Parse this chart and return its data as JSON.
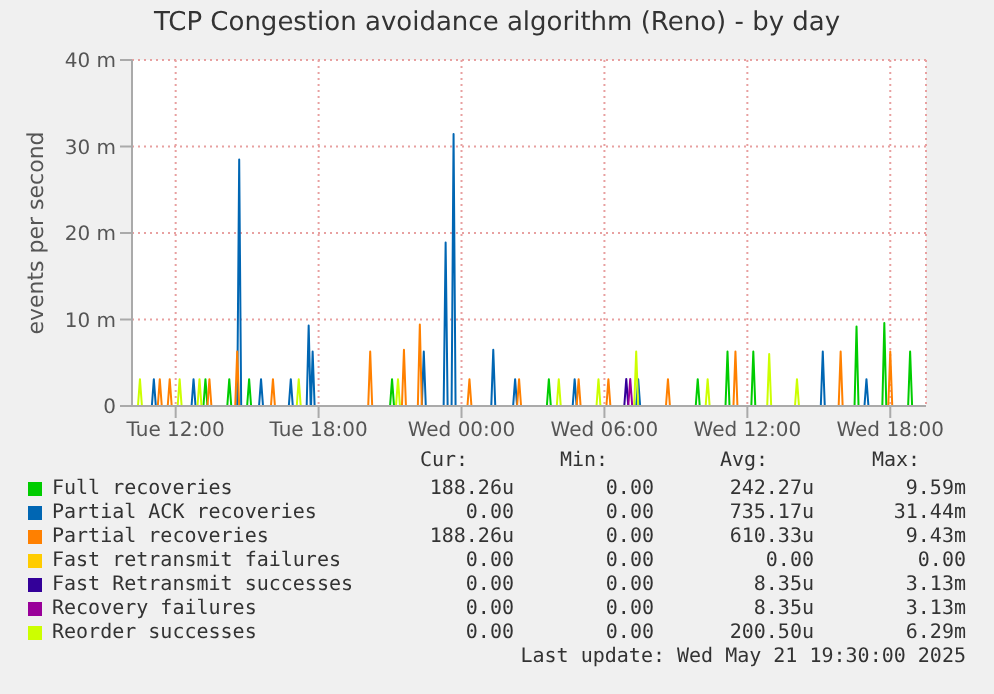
{
  "chart_data": {
    "type": "line",
    "title": "TCP Congestion avoidance algorithm (Reno) - by day",
    "ylabel": "events per second",
    "xlim": [
      "2025-05-20T10:10",
      "2025-05-21T19:30"
    ],
    "ylim": [
      0,
      40
    ],
    "xticks": [
      {
        "value": "2025-05-20T12:00",
        "label": "Tue 12:00"
      },
      {
        "value": "2025-05-20T18:00",
        "label": "Tue 18:00"
      },
      {
        "value": "2025-05-21T00:00",
        "label": "Wed 00:00"
      },
      {
        "value": "2025-05-21T06:00",
        "label": "Wed 06:00"
      },
      {
        "value": "2025-05-21T12:00",
        "label": "Wed 12:00"
      },
      {
        "value": "2025-05-21T18:00",
        "label": "Wed 18:00"
      }
    ],
    "yticks": [
      {
        "value": 0,
        "label": "0"
      },
      {
        "value": 10,
        "label": "10 m"
      },
      {
        "value": 20,
        "label": "20 m"
      },
      {
        "value": 30,
        "label": "30 m"
      },
      {
        "value": 40,
        "label": "40 m"
      }
    ],
    "grid": true,
    "legend": "bottom",
    "marker": "none",
    "series": [
      {
        "name": "Full recoveries",
        "color": "#00cc00",
        "x": [
          "2025-05-20T13:10",
          "2025-05-20T13:15",
          "2025-05-20T13:20",
          "2025-05-20T14:10",
          "2025-05-20T14:15",
          "2025-05-20T14:20",
          "2025-05-20T15:00",
          "2025-05-20T15:05",
          "2025-05-20T15:10",
          "2025-05-20T21:00",
          "2025-05-20T21:05",
          "2025-05-20T21:10",
          "2025-05-21T03:35",
          "2025-05-21T03:40",
          "2025-05-21T03:45",
          "2025-05-21T09:50",
          "2025-05-21T09:55",
          "2025-05-21T10:00",
          "2025-05-21T11:05",
          "2025-05-21T11:10",
          "2025-05-21T11:15",
          "2025-05-21T12:10",
          "2025-05-21T12:15",
          "2025-05-21T12:20",
          "2025-05-21T16:30",
          "2025-05-21T16:35",
          "2025-05-21T16:40",
          "2025-05-21T17:40",
          "2025-05-21T17:45",
          "2025-05-21T17:50",
          "2025-05-21T18:45",
          "2025-05-21T18:50",
          "2025-05-21T18:55"
        ],
        "values": [
          0,
          3.1,
          0,
          0,
          3.1,
          0,
          0,
          3.1,
          0,
          0,
          3.1,
          0,
          0,
          3.1,
          0,
          0,
          3.1,
          0,
          0,
          6.3,
          0,
          0,
          6.3,
          0,
          0,
          9.2,
          0,
          0,
          9.59,
          0,
          0,
          6.3,
          0
        ]
      },
      {
        "name": "Partial ACK recoveries",
        "color": "#0066b3",
        "x": [
          "2025-05-20T11:00",
          "2025-05-20T11:05",
          "2025-05-20T11:10",
          "2025-05-20T12:40",
          "2025-05-20T12:45",
          "2025-05-20T12:50",
          "2025-05-20T14:35",
          "2025-05-20T14:40",
          "2025-05-20T14:45",
          "2025-05-20T15:30",
          "2025-05-20T15:35",
          "2025-05-20T15:40",
          "2025-05-20T16:45",
          "2025-05-20T16:50",
          "2025-05-20T16:55",
          "2025-05-20T17:30",
          "2025-05-20T17:35",
          "2025-05-20T17:40",
          "2025-05-20T17:41",
          "2025-05-20T17:45",
          "2025-05-20T17:50",
          "2025-05-20T22:20",
          "2025-05-20T22:25",
          "2025-05-20T22:30",
          "2025-05-20T23:15",
          "2025-05-20T23:20",
          "2025-05-20T23:25",
          "2025-05-20T23:35",
          "2025-05-20T23:40",
          "2025-05-20T23:45",
          "2025-05-21T01:15",
          "2025-05-21T01:20",
          "2025-05-21T01:25",
          "2025-05-21T02:10",
          "2025-05-21T02:15",
          "2025-05-21T02:20",
          "2025-05-21T04:40",
          "2025-05-21T04:45",
          "2025-05-21T04:50",
          "2025-05-21T07:20",
          "2025-05-21T07:25",
          "2025-05-21T07:30",
          "2025-05-21T15:05",
          "2025-05-21T15:10",
          "2025-05-21T15:15",
          "2025-05-21T16:55",
          "2025-05-21T17:00",
          "2025-05-21T17:05"
        ],
        "values": [
          0,
          3.1,
          0,
          0,
          3.1,
          0,
          0,
          28.5,
          0,
          0,
          3.1,
          0,
          0,
          3.1,
          0,
          0,
          9.3,
          0,
          0,
          6.3,
          0,
          0,
          6.3,
          0,
          0,
          18.9,
          0,
          0,
          31.44,
          0,
          0,
          6.5,
          0,
          0,
          3.1,
          0,
          0,
          3.1,
          0,
          0,
          3.1,
          0,
          0,
          6.3,
          0,
          0,
          3.1,
          0
        ]
      },
      {
        "name": "Partial recoveries",
        "color": "#ff8000",
        "x": [
          "2025-05-20T11:15",
          "2025-05-20T11:20",
          "2025-05-20T11:25",
          "2025-05-20T11:40",
          "2025-05-20T11:45",
          "2025-05-20T11:50",
          "2025-05-20T13:20",
          "2025-05-20T13:25",
          "2025-05-20T13:30",
          "2025-05-20T14:30",
          "2025-05-20T14:35",
          "2025-05-20T14:40",
          "2025-05-20T16:00",
          "2025-05-20T16:05",
          "2025-05-20T16:10",
          "2025-05-20T20:05",
          "2025-05-20T20:10",
          "2025-05-20T20:15",
          "2025-05-20T21:30",
          "2025-05-20T21:35",
          "2025-05-20T21:40",
          "2025-05-20T22:10",
          "2025-05-20T22:15",
          "2025-05-20T22:20",
          "2025-05-21T00:15",
          "2025-05-21T00:20",
          "2025-05-21T00:25",
          "2025-05-21T02:20",
          "2025-05-21T02:25",
          "2025-05-21T02:30",
          "2025-05-21T04:50",
          "2025-05-21T04:55",
          "2025-05-21T05:00",
          "2025-05-21T06:05",
          "2025-05-21T06:10",
          "2025-05-21T06:15",
          "2025-05-21T08:35",
          "2025-05-21T08:40",
          "2025-05-21T08:45",
          "2025-05-21T11:25",
          "2025-05-21T11:30",
          "2025-05-21T11:35",
          "2025-05-21T15:50",
          "2025-05-21T15:55",
          "2025-05-21T16:00",
          "2025-05-21T17:55",
          "2025-05-21T18:00",
          "2025-05-21T18:05"
        ],
        "values": [
          0,
          3.1,
          0,
          0,
          3.1,
          0,
          0,
          3.1,
          0,
          0,
          6.3,
          0,
          0,
          3.1,
          0,
          0,
          6.3,
          0,
          0,
          6.5,
          0,
          0,
          9.43,
          0,
          0,
          3.1,
          0,
          0,
          3.1,
          0,
          0,
          3.1,
          0,
          0,
          3.1,
          0,
          0,
          3.1,
          0,
          0,
          6.3,
          0,
          0,
          6.3,
          0,
          0,
          6.3,
          0
        ]
      },
      {
        "name": "Fast retransmit failures",
        "color": "#ffcc00"
      },
      {
        "name": "Fast Retransmit successes",
        "color": "#330099",
        "x": [
          "2025-05-21T06:50",
          "2025-05-21T06:55",
          "2025-05-21T07:00"
        ],
        "values": [
          0,
          3.13,
          0
        ]
      },
      {
        "name": "Recovery failures",
        "color": "#990099",
        "x": [
          "2025-05-21T07:00",
          "2025-05-21T07:05",
          "2025-05-21T07:10"
        ],
        "values": [
          0,
          3.13,
          0
        ]
      },
      {
        "name": "Reorder successes",
        "color": "#ccff00",
        "x": [
          "2025-05-20T10:25",
          "2025-05-20T10:30",
          "2025-05-20T10:35",
          "2025-05-20T12:05",
          "2025-05-20T12:10",
          "2025-05-20T12:15",
          "2025-05-20T12:55",
          "2025-05-20T13:00",
          "2025-05-20T13:05",
          "2025-05-20T17:05",
          "2025-05-20T17:10",
          "2025-05-20T17:15",
          "2025-05-20T21:15",
          "2025-05-20T21:20",
          "2025-05-20T21:25",
          "2025-05-21T04:00",
          "2025-05-21T04:05",
          "2025-05-21T04:10",
          "2025-05-21T05:40",
          "2025-05-21T05:45",
          "2025-05-21T05:50",
          "2025-05-21T07:15",
          "2025-05-21T07:20",
          "2025-05-21T07:25",
          "2025-05-21T10:15",
          "2025-05-21T10:20",
          "2025-05-21T10:25",
          "2025-05-21T12:50",
          "2025-05-21T12:55",
          "2025-05-21T13:00",
          "2025-05-21T14:00",
          "2025-05-21T14:05",
          "2025-05-21T14:10"
        ],
        "values": [
          0,
          3.1,
          0,
          0,
          3.1,
          0,
          0,
          3.1,
          0,
          0,
          3.1,
          0,
          0,
          3.1,
          0,
          0,
          3.1,
          0,
          0,
          3.1,
          0,
          0,
          6.29,
          0,
          0,
          3.1,
          0,
          0,
          6.0,
          0,
          0,
          3.1,
          0
        ]
      }
    ],
    "annotations": [
      "Cur:",
      "Min:",
      "Avg:",
      "Max:",
      "188.26u",
      "0.00",
      "242.27u",
      "9.59m",
      "0.00",
      "0.00",
      "735.17u",
      "31.44m",
      "188.26u",
      "0.00",
      "610.33u",
      "9.43m",
      "0.00",
      "0.00",
      "0.00",
      "0.00",
      "0.00",
      "0.00",
      "8.35u",
      "3.13m",
      "0.00",
      "0.00",
      "8.35u",
      "3.13m",
      "0.00",
      "0.00",
      "200.50u",
      "6.29m",
      "Last update: Wed May 21 19:30:00 2025"
    ]
  }
}
